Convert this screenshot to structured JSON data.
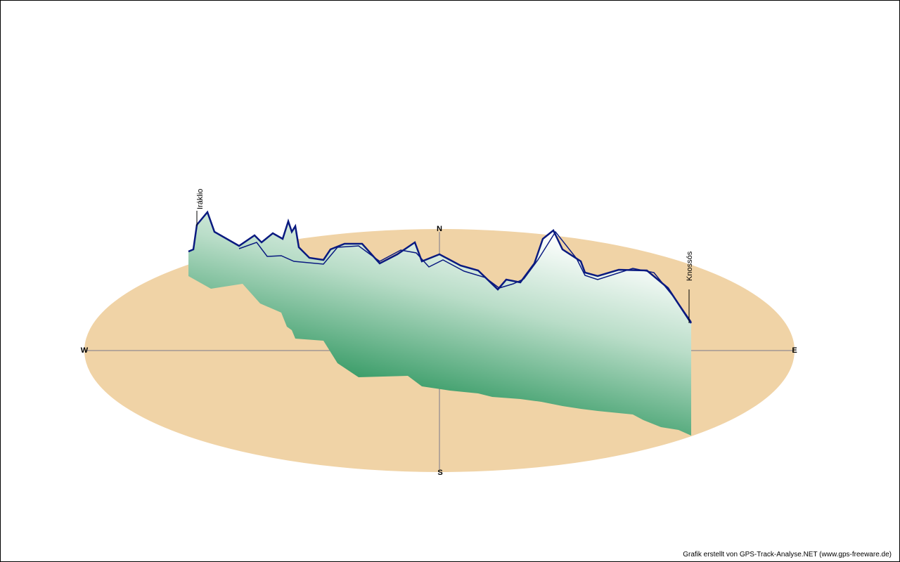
{
  "compass": {
    "north": "N",
    "south": "S",
    "west": "W",
    "east": "E"
  },
  "places": [
    "Iráklio",
    "Knossós"
  ],
  "footer": "Grafik erstellt von GPS-Track-Analyse.NET (www.gps-freeware.de)"
}
